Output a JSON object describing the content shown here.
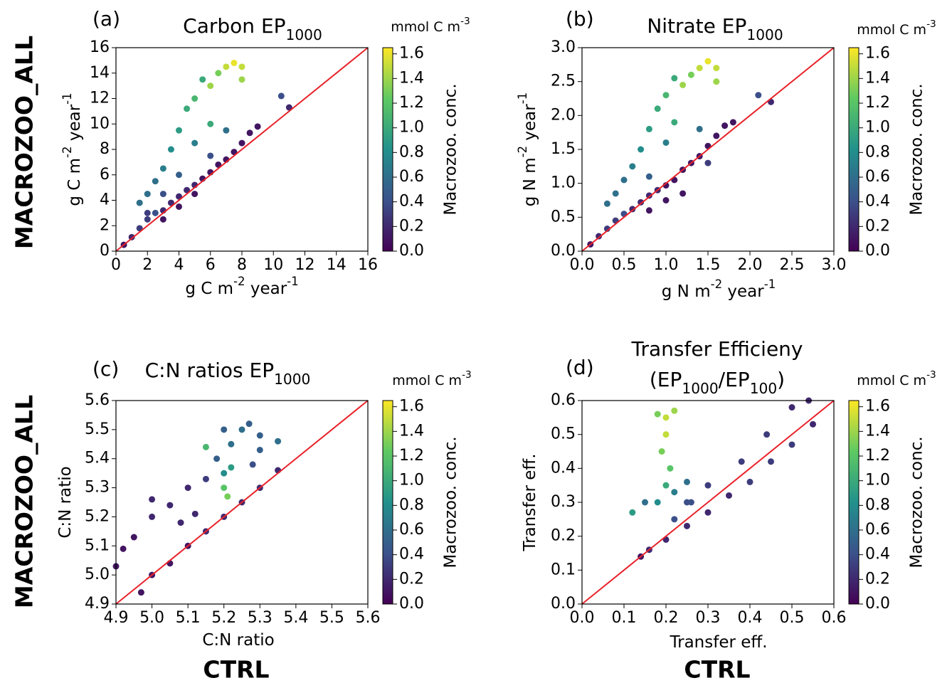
{
  "row_labels": [
    "MACROZOO_ALL",
    "MACROZOO_ALL"
  ],
  "col_labels": [
    "CTRL",
    "CTRL"
  ],
  "chart_data": [
    {
      "type": "scatter",
      "label": "(a)",
      "title": [
        [
          {
            "text": "Carbon EP"
          },
          {
            "text": "1000",
            "sub": true
          }
        ]
      ],
      "xlabel": [
        {
          "text": "g C m"
        },
        {
          "text": "-2",
          "sup": true
        },
        {
          "text": " year"
        },
        {
          "text": "-1",
          "sup": true
        }
      ],
      "ylabel": [
        {
          "text": "g C m"
        },
        {
          "text": "-2",
          "sup": true
        },
        {
          "text": " year"
        },
        {
          "text": "-1",
          "sup": true
        }
      ],
      "xlim": [
        0,
        16
      ],
      "ylim": [
        0,
        16
      ],
      "xticks": [
        0,
        2,
        4,
        6,
        8,
        10,
        12,
        14,
        16
      ],
      "yticks": [
        0,
        2,
        4,
        6,
        8,
        10,
        12,
        14,
        16
      ],
      "identity_line_color": "#e8222a",
      "colormap": "viridis",
      "colorbar": {
        "label": "Macrozoo. conc.",
        "units": [
          {
            "text": "mmol C m"
          },
          {
            "text": "-3",
            "sup": true
          }
        ],
        "clim": [
          0,
          1.65
        ],
        "ticks": [
          {
            "value": 0,
            "label": "0.0"
          },
          0.2,
          0.4,
          0.6,
          0.8,
          {
            "value": 1,
            "label": "1.0"
          },
          1.2,
          1.4,
          1.6
        ]
      },
      "x": [
        0.5,
        1,
        1.5,
        2,
        2.5,
        3,
        3.5,
        4,
        4.5,
        5,
        5.5,
        6,
        6.5,
        7,
        7.5,
        8,
        8.5,
        9,
        10.5,
        11,
        1.5,
        2,
        2.5,
        3,
        3.5,
        4,
        4.5,
        5,
        5.5,
        6,
        6.5,
        7,
        7.5,
        8,
        8,
        6,
        5,
        7,
        4,
        3,
        6,
        2,
        3,
        4,
        5
      ],
      "y": [
        0.5,
        1.1,
        1.8,
        2.5,
        3,
        3.2,
        3.8,
        4.3,
        4.8,
        5.2,
        5.7,
        6.2,
        6.8,
        7.2,
        7.8,
        8.5,
        9.3,
        9.8,
        12.2,
        11.3,
        3.8,
        4.5,
        5.5,
        6.5,
        8,
        9.5,
        11.2,
        12,
        13.5,
        13,
        14,
        14.5,
        14.8,
        14.5,
        13.5,
        10,
        8.5,
        9.5,
        6,
        4.5,
        7.5,
        3,
        2.5,
        3.5,
        4.5
      ],
      "c": [
        0.1,
        0.2,
        0.3,
        0.3,
        0.4,
        0.2,
        0.2,
        0.2,
        0.2,
        0.2,
        0.1,
        0.1,
        0.1,
        0.1,
        0.1,
        0.1,
        0.1,
        0.1,
        0.4,
        0.2,
        0.6,
        0.6,
        0.6,
        0.7,
        0.8,
        0.9,
        1,
        1.1,
        1,
        1.4,
        1.3,
        1.5,
        1.6,
        1.5,
        1.4,
        1,
        0.7,
        0.6,
        0.5,
        0.4,
        0.4,
        0.3,
        0.1,
        0.1,
        0.1
      ]
    },
    {
      "type": "scatter",
      "label": "(b)",
      "title": [
        [
          {
            "text": "Nitrate EP"
          },
          {
            "text": "1000",
            "sub": true
          }
        ]
      ],
      "xlabel": [
        {
          "text": "g N m"
        },
        {
          "text": "-2",
          "sup": true
        },
        {
          "text": " year"
        },
        {
          "text": "-1",
          "sup": true
        }
      ],
      "ylabel": [
        {
          "text": "g N m"
        },
        {
          "text": "-2",
          "sup": true
        },
        {
          "text": " year"
        },
        {
          "text": "-1",
          "sup": true
        }
      ],
      "xlim": [
        0,
        3
      ],
      "ylim": [
        0,
        3
      ],
      "xticks": [
        {
          "value": 0,
          "label": "0.0"
        },
        0.5,
        {
          "value": 1,
          "label": "1.0"
        },
        1.5,
        {
          "value": 2,
          "label": "2.0"
        },
        2.5,
        {
          "value": 3,
          "label": "3.0"
        }
      ],
      "yticks": [
        {
          "value": 0,
          "label": "0.0"
        },
        0.5,
        {
          "value": 1,
          "label": "1.0"
        },
        1.5,
        {
          "value": 2,
          "label": "2.0"
        },
        2.5,
        {
          "value": 3,
          "label": "3.0"
        }
      ],
      "identity_line_color": "#e8222a",
      "colormap": "viridis",
      "colorbar": {
        "label": "Macrozoo. conc.",
        "units": [
          {
            "text": "mmol C m"
          },
          {
            "text": "-3",
            "sup": true
          }
        ],
        "clim": [
          0,
          1.65
        ],
        "ticks": [
          {
            "value": 0,
            "label": "0.0"
          },
          0.2,
          0.4,
          0.6,
          0.8,
          {
            "value": 1,
            "label": "1.0"
          },
          1.2,
          1.4,
          1.6
        ]
      },
      "x": [
        0.1,
        0.2,
        0.3,
        0.4,
        0.5,
        0.6,
        0.7,
        0.8,
        0.9,
        1,
        1.1,
        1.2,
        1.3,
        1.4,
        1.5,
        1.6,
        1.7,
        1.8,
        2.1,
        2.25,
        0.3,
        0.4,
        0.5,
        0.6,
        0.7,
        0.8,
        0.9,
        1,
        1.1,
        1.2,
        1.3,
        1.4,
        1.5,
        1.6,
        1.6,
        1.1,
        1,
        1.4,
        0.8,
        1.2,
        1.5,
        1,
        0.8
      ],
      "y": [
        0.1,
        0.22,
        0.33,
        0.45,
        0.55,
        0.62,
        0.72,
        0.82,
        0.9,
        0.97,
        1.05,
        1.2,
        1.3,
        1.4,
        1.55,
        1.7,
        1.85,
        1.9,
        2.3,
        2.2,
        0.7,
        0.85,
        1.05,
        1.25,
        1.5,
        1.8,
        2.1,
        2.3,
        2.55,
        2.45,
        2.6,
        2.7,
        2.8,
        2.7,
        2.5,
        1.9,
        1.6,
        1.8,
        1.1,
        0.85,
        1.3,
        0.75,
        0.6
      ],
      "c": [
        0.1,
        0.2,
        0.3,
        0.3,
        0.4,
        0.2,
        0.2,
        0.2,
        0.2,
        0.1,
        0.1,
        0.1,
        0.1,
        0.1,
        0.1,
        0.1,
        0.1,
        0.1,
        0.4,
        0.2,
        0.6,
        0.6,
        0.6,
        0.7,
        0.8,
        0.9,
        1,
        1.1,
        1,
        1.4,
        1.3,
        1.5,
        1.6,
        1.5,
        1.4,
        1,
        0.7,
        0.6,
        0.5,
        0.1,
        0.3,
        0.1,
        0.1
      ]
    },
    {
      "type": "scatter",
      "label": "(c)",
      "title": [
        [
          {
            "text": "C:N ratios EP"
          },
          {
            "text": "1000",
            "sub": true
          }
        ]
      ],
      "xlabel": [
        {
          "text": "C:N ratio"
        }
      ],
      "ylabel": [
        {
          "text": "C:N ratio"
        }
      ],
      "xlim": [
        4.9,
        5.6
      ],
      "ylim": [
        4.9,
        5.6
      ],
      "xticks": [
        4.9,
        {
          "value": 5,
          "label": "5.0"
        },
        5.1,
        5.2,
        5.3,
        5.4,
        5.5,
        5.6
      ],
      "yticks": [
        4.9,
        {
          "value": 5,
          "label": "5.0"
        },
        5.1,
        5.2,
        5.3,
        5.4,
        5.5,
        5.6
      ],
      "identity_line_color": "#e8222a",
      "colormap": "viridis",
      "colorbar": {
        "label": "Macrozoo. conc.",
        "units": [
          {
            "text": "mmol C m"
          },
          {
            "text": "-3",
            "sup": true
          }
        ],
        "clim": [
          0,
          1.65
        ],
        "ticks": [
          {
            "value": 0,
            "label": "0.0"
          },
          0.2,
          0.4,
          0.6,
          0.8,
          {
            "value": 1,
            "label": "1.0"
          },
          1.2,
          1.4,
          1.6
        ]
      },
      "x": [
        4.97,
        5,
        5.05,
        5.1,
        5.15,
        5.2,
        5.25,
        5.3,
        5.35,
        4.9,
        4.92,
        4.95,
        5,
        5.05,
        5.1,
        5.15,
        5,
        5.08,
        5.12,
        5.15,
        5.2,
        5.25,
        5.3,
        5.35,
        5.3,
        5.22,
        5.18,
        5.2,
        5.21,
        5.22,
        5.27,
        5.2,
        5.28
      ],
      "y": [
        4.94,
        5,
        5.04,
        5.1,
        5.15,
        5.2,
        5.25,
        5.3,
        5.36,
        5.03,
        5.09,
        5.13,
        5.2,
        5.24,
        5.3,
        5.33,
        5.26,
        5.18,
        5.21,
        5.44,
        5.5,
        5.5,
        5.48,
        5.46,
        5.43,
        5.45,
        5.4,
        5.3,
        5.27,
        5.37,
        5.52,
        5.35,
        5.38
      ],
      "c": [
        0.1,
        0.1,
        0.1,
        0.1,
        0.2,
        0.2,
        0.2,
        0.2,
        0.2,
        0.1,
        0.1,
        0.1,
        0.2,
        0.2,
        0.2,
        0.3,
        0.2,
        0.2,
        0.2,
        1.1,
        0.5,
        0.6,
        0.5,
        0.6,
        0.5,
        0.6,
        0.5,
        1.2,
        1.3,
        0.9,
        0.5,
        0.8,
        0.4
      ]
    },
    {
      "type": "scatter",
      "label": "(d)",
      "title": [
        [
          {
            "text": "Transfer Efficieny"
          }
        ],
        [
          {
            "text": "(EP"
          },
          {
            "text": "1000",
            "sub": true
          },
          {
            "text": "/EP"
          },
          {
            "text": "100",
            "sub": true
          },
          {
            "text": ")"
          }
        ]
      ],
      "xlabel": [
        {
          "text": "Transfer eff."
        }
      ],
      "ylabel": [
        {
          "text": "Transfer eff."
        }
      ],
      "xlim": [
        0,
        0.6
      ],
      "ylim": [
        0,
        0.6
      ],
      "xticks": [
        {
          "value": 0,
          "label": "0.0"
        },
        0.1,
        0.2,
        0.3,
        0.4,
        0.5,
        0.6
      ],
      "yticks": [
        {
          "value": 0,
          "label": "0.0"
        },
        0.1,
        0.2,
        0.3,
        0.4,
        0.5,
        0.6
      ],
      "identity_line_color": "#e8222a",
      "colormap": "viridis",
      "colorbar": {
        "label": "Macrozoo. conc.",
        "units": [
          {
            "text": "mmol C m"
          },
          {
            "text": "-3",
            "sup": true
          }
        ],
        "clim": [
          0,
          1.65
        ],
        "ticks": [
          {
            "value": 0,
            "label": "0.0"
          },
          0.2,
          0.4,
          0.6,
          0.8,
          {
            "value": 1,
            "label": "1.0"
          },
          1.2,
          1.4,
          1.6
        ]
      },
      "x": [
        0.14,
        0.16,
        0.2,
        0.25,
        0.3,
        0.35,
        0.4,
        0.45,
        0.5,
        0.55,
        0.54,
        0.5,
        0.44,
        0.38,
        0.3,
        0.25,
        0.22,
        0.18,
        0.2,
        0.22,
        0.2,
        0.19,
        0.21,
        0.2,
        0.18,
        0.22,
        0.25,
        0.12,
        0.15,
        0.26
      ],
      "y": [
        0.14,
        0.16,
        0.19,
        0.23,
        0.27,
        0.32,
        0.36,
        0.42,
        0.47,
        0.53,
        0.6,
        0.58,
        0.5,
        0.42,
        0.35,
        0.3,
        0.25,
        0.56,
        0.55,
        0.57,
        0.5,
        0.45,
        0.4,
        0.35,
        0.3,
        0.33,
        0.36,
        0.27,
        0.3,
        0.3
      ],
      "c": [
        0.1,
        0.2,
        0.2,
        0.2,
        0.2,
        0.2,
        0.3,
        0.3,
        0.3,
        0.2,
        0.2,
        0.2,
        0.3,
        0.3,
        0.3,
        0.4,
        0.4,
        1.3,
        1.5,
        1.4,
        1.5,
        1.3,
        1.2,
        1,
        0.8,
        0.7,
        0.6,
        0.9,
        0.6,
        0.4
      ]
    }
  ]
}
